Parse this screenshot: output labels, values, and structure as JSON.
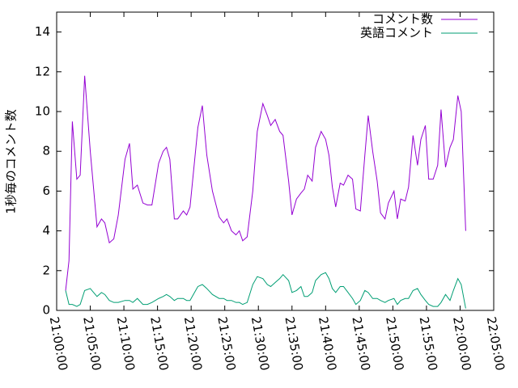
{
  "chart_data": {
    "type": "line",
    "ylabel": "1秒毎のコメント数",
    "x": [
      "21:01:20",
      "21:01:50",
      "21:02:20",
      "21:03:00",
      "21:03:30",
      "21:04:10",
      "21:05:00",
      "21:06:00",
      "21:06:40",
      "21:07:10",
      "21:07:50",
      "21:08:30",
      "21:09:10",
      "21:10:10",
      "21:10:50",
      "21:11:20",
      "21:12:00",
      "21:12:50",
      "21:13:30",
      "21:14:10",
      "21:15:10",
      "21:15:50",
      "21:16:20",
      "21:16:50",
      "21:17:30",
      "21:18:00",
      "21:18:50",
      "21:19:20",
      "21:19:50",
      "21:21:00",
      "21:21:40",
      "21:22:20",
      "21:23:10",
      "21:24:10",
      "21:24:50",
      "21:25:20",
      "21:26:00",
      "21:26:40",
      "21:27:10",
      "21:27:40",
      "21:28:20",
      "21:29:10",
      "21:29:50",
      "21:30:40",
      "21:31:20",
      "21:31:50",
      "21:32:30",
      "21:33:10",
      "21:33:40",
      "21:34:30",
      "21:35:00",
      "21:35:40",
      "21:36:20",
      "21:36:50",
      "21:37:20",
      "21:38:00",
      "21:38:30",
      "21:39:20",
      "21:40:00",
      "21:40:30",
      "21:41:00",
      "21:41:30",
      "21:42:10",
      "21:42:40",
      "21:43:20",
      "21:44:00",
      "21:44:30",
      "21:45:10",
      "21:45:50",
      "21:46:20",
      "21:47:00",
      "21:47:40",
      "21:48:10",
      "21:48:50",
      "21:49:20",
      "21:50:10",
      "21:50:40",
      "21:51:10",
      "21:51:50",
      "21:52:20",
      "21:53:00",
      "21:53:40",
      "21:54:10",
      "21:54:50",
      "21:55:20",
      "21:56:00",
      "21:56:40",
      "21:57:10",
      "21:57:50",
      "21:58:30",
      "21:59:00",
      "21:59:40",
      "22:00:10",
      "22:00:50"
    ],
    "series": [
      {
        "name": "コメント数",
        "color": "#9400d3",
        "values": [
          1.0,
          2.5,
          9.5,
          6.6,
          6.8,
          11.8,
          8.0,
          4.2,
          4.6,
          4.4,
          3.4,
          3.6,
          4.8,
          7.6,
          8.4,
          6.1,
          6.3,
          5.4,
          5.3,
          5.3,
          7.4,
          8.0,
          8.2,
          7.6,
          4.6,
          4.6,
          5.0,
          4.8,
          5.2,
          9.2,
          10.3,
          7.8,
          6.0,
          4.7,
          4.4,
          4.6,
          4.0,
          3.8,
          4.0,
          3.5,
          3.7,
          6.0,
          9.0,
          10.4,
          9.8,
          9.3,
          9.6,
          9.0,
          8.8,
          6.5,
          4.8,
          5.6,
          5.9,
          6.1,
          6.8,
          6.5,
          8.2,
          9.0,
          8.6,
          7.8,
          6.2,
          5.2,
          6.4,
          6.3,
          6.8,
          6.6,
          5.1,
          5.0,
          7.8,
          9.8,
          8.0,
          6.5,
          4.9,
          4.6,
          5.4,
          6.0,
          4.6,
          5.6,
          5.5,
          6.2,
          8.8,
          7.3,
          8.6,
          9.3,
          6.6,
          6.6,
          7.3,
          10.1,
          7.2,
          8.2,
          8.6,
          10.8,
          10.0,
          4.0
        ]
      },
      {
        "name": "英語コメント",
        "color": "#009e73",
        "values": [
          1.0,
          0.3,
          0.3,
          0.2,
          0.3,
          1.0,
          1.1,
          0.7,
          0.9,
          0.8,
          0.5,
          0.4,
          0.4,
          0.5,
          0.5,
          0.4,
          0.6,
          0.3,
          0.3,
          0.4,
          0.6,
          0.7,
          0.8,
          0.7,
          0.5,
          0.6,
          0.6,
          0.5,
          0.5,
          1.2,
          1.3,
          1.1,
          0.8,
          0.6,
          0.6,
          0.5,
          0.5,
          0.4,
          0.4,
          0.3,
          0.4,
          1.3,
          1.7,
          1.6,
          1.3,
          1.2,
          1.4,
          1.6,
          1.8,
          1.5,
          0.9,
          1.0,
          1.2,
          0.7,
          0.7,
          0.9,
          1.5,
          1.8,
          1.9,
          1.6,
          1.1,
          0.9,
          1.2,
          1.2,
          0.9,
          0.6,
          0.3,
          0.5,
          1.0,
          0.9,
          0.6,
          0.6,
          0.5,
          0.4,
          0.5,
          0.6,
          0.3,
          0.5,
          0.6,
          0.6,
          1.0,
          1.1,
          0.8,
          0.5,
          0.3,
          0.2,
          0.2,
          0.4,
          0.8,
          0.5,
          1.0,
          1.6,
          1.3,
          0.1
        ]
      }
    ],
    "xlim": [
      "21:00:00",
      "22:05:00"
    ],
    "xticks": [
      "21:00:00",
      "21:05:00",
      "21:10:00",
      "21:15:00",
      "21:20:00",
      "21:25:00",
      "21:30:00",
      "21:35:00",
      "21:40:00",
      "21:45:00",
      "21:50:00",
      "21:55:00",
      "22:00:00",
      "22:05:00"
    ],
    "ylim": [
      0,
      15
    ],
    "yticks": [
      0,
      2,
      4,
      6,
      8,
      10,
      12,
      14
    ],
    "legend": "top-right"
  }
}
